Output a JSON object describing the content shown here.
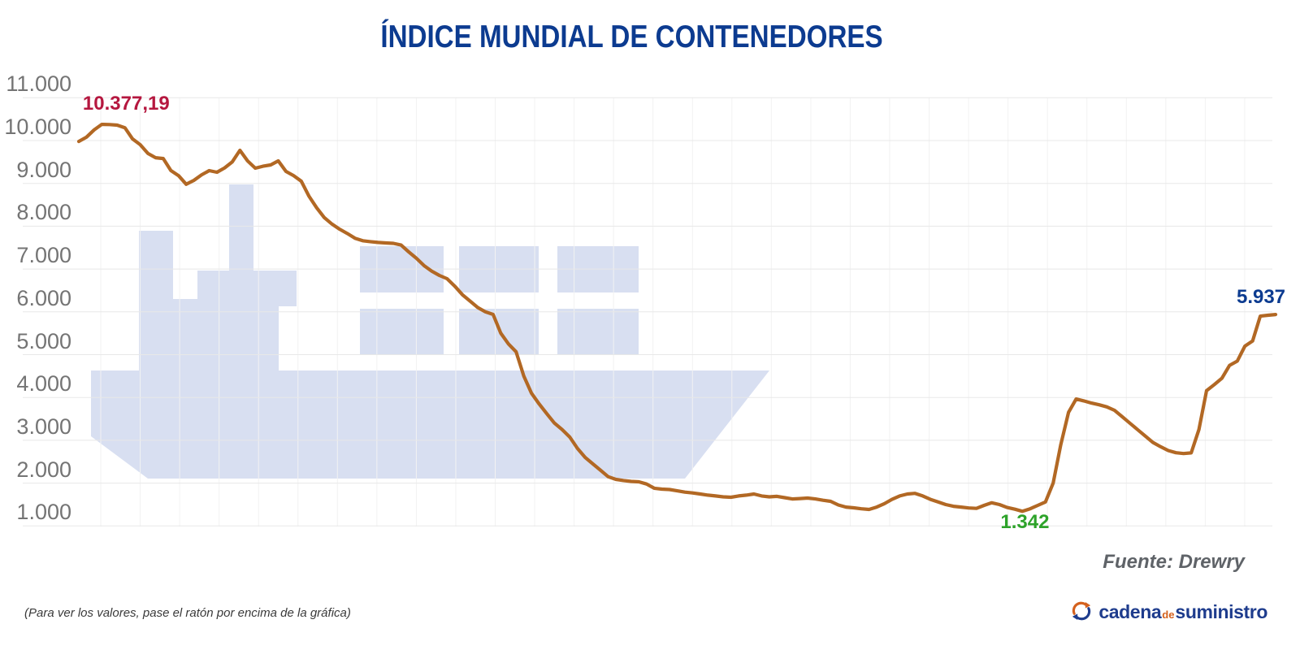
{
  "title": {
    "text": "ÍNDICE MUNDIAL DE CONTENEDORES",
    "color": "#0c3b90"
  },
  "chart_data": {
    "type": "line",
    "title": "ÍNDICE MUNDIAL DE CONTENEDORES",
    "grid": {
      "horizontal": true,
      "vertical": true
    },
    "legend_position": "none",
    "watermark_icon": "container-ship",
    "y_axis": {
      "min": 1000,
      "max": 11000,
      "tick_labels": [
        "11.000",
        "10.000",
        "9.000",
        "8.000",
        "7.000",
        "6.000",
        "5.000",
        "4.000",
        "3.000",
        "2.000",
        "1.000"
      ],
      "label_color": "#747474"
    },
    "x_axis": {
      "tick_labels": []
    },
    "series": [
      {
        "color": "#b26824",
        "values": [
          9980,
          10080,
          10250,
          10377,
          10374,
          10360,
          10300,
          10040,
          9905,
          9700,
          9600,
          9580,
          9300,
          9180,
          8980,
          9070,
          9200,
          9298,
          9260,
          9360,
          9500,
          9772,
          9526,
          9355,
          9400,
          9431,
          9526,
          9280,
          9180,
          9051,
          8700,
          8430,
          8200,
          8050,
          7930,
          7830,
          7720,
          7660,
          7640,
          7620,
          7610,
          7600,
          7560,
          7400,
          7250,
          7080,
          6950,
          6850,
          6774,
          6600,
          6400,
          6250,
          6100,
          6000,
          5940,
          5503,
          5250,
          5066,
          4500,
          4100,
          3850,
          3620,
          3400,
          3250,
          3074,
          2808,
          2600,
          2450,
          2300,
          2150,
          2087,
          2060,
          2040,
          2030,
          1980,
          1880,
          1860,
          1850,
          1820,
          1790,
          1770,
          1745,
          1720,
          1700,
          1680,
          1670,
          1700,
          1720,
          1745,
          1700,
          1680,
          1690,
          1660,
          1630,
          1640,
          1650,
          1630,
          1600,
          1575,
          1490,
          1440,
          1423,
          1400,
          1386,
          1440,
          1520,
          1620,
          1700,
          1745,
          1760,
          1700,
          1620,
          1560,
          1500,
          1460,
          1440,
          1420,
          1410,
          1480,
          1540,
          1500,
          1430,
          1390,
          1342,
          1400,
          1480,
          1560,
          2000,
          2900,
          3650,
          3964,
          3920,
          3870,
          3830,
          3780,
          3700,
          3550,
          3400,
          3250,
          3100,
          2950,
          2850,
          2760,
          2710,
          2690,
          2706,
          3250,
          4160,
          4300,
          4450,
          4750,
          4850,
          5200,
          5320,
          5900,
          5920,
          5937
        ]
      }
    ],
    "annotations": [
      {
        "id": "peak",
        "text": "10.377,19",
        "value": 10377.19,
        "point_index": 3,
        "color": "#b5173f",
        "placement": "above-right"
      },
      {
        "id": "low",
        "text": "1.342",
        "value": 1342,
        "point_index": 123,
        "color": "#2da32a",
        "placement": "below"
      },
      {
        "id": "last",
        "text": "5.937",
        "value": 5937,
        "point_index": 156,
        "color": "#0c3b90",
        "placement": "above-left"
      }
    ]
  },
  "source": {
    "text": "Fuente: Drewry"
  },
  "footnote": {
    "text": "(Para ver los valores, pase el ratón por encima de la gráfica)"
  },
  "logo": {
    "word1": "cadena",
    "word2": "de",
    "word3": "suministro",
    "color_primary": "#1e3c8d",
    "color_accent": "#d4611e",
    "icon": "refresh-arrows-icon"
  }
}
